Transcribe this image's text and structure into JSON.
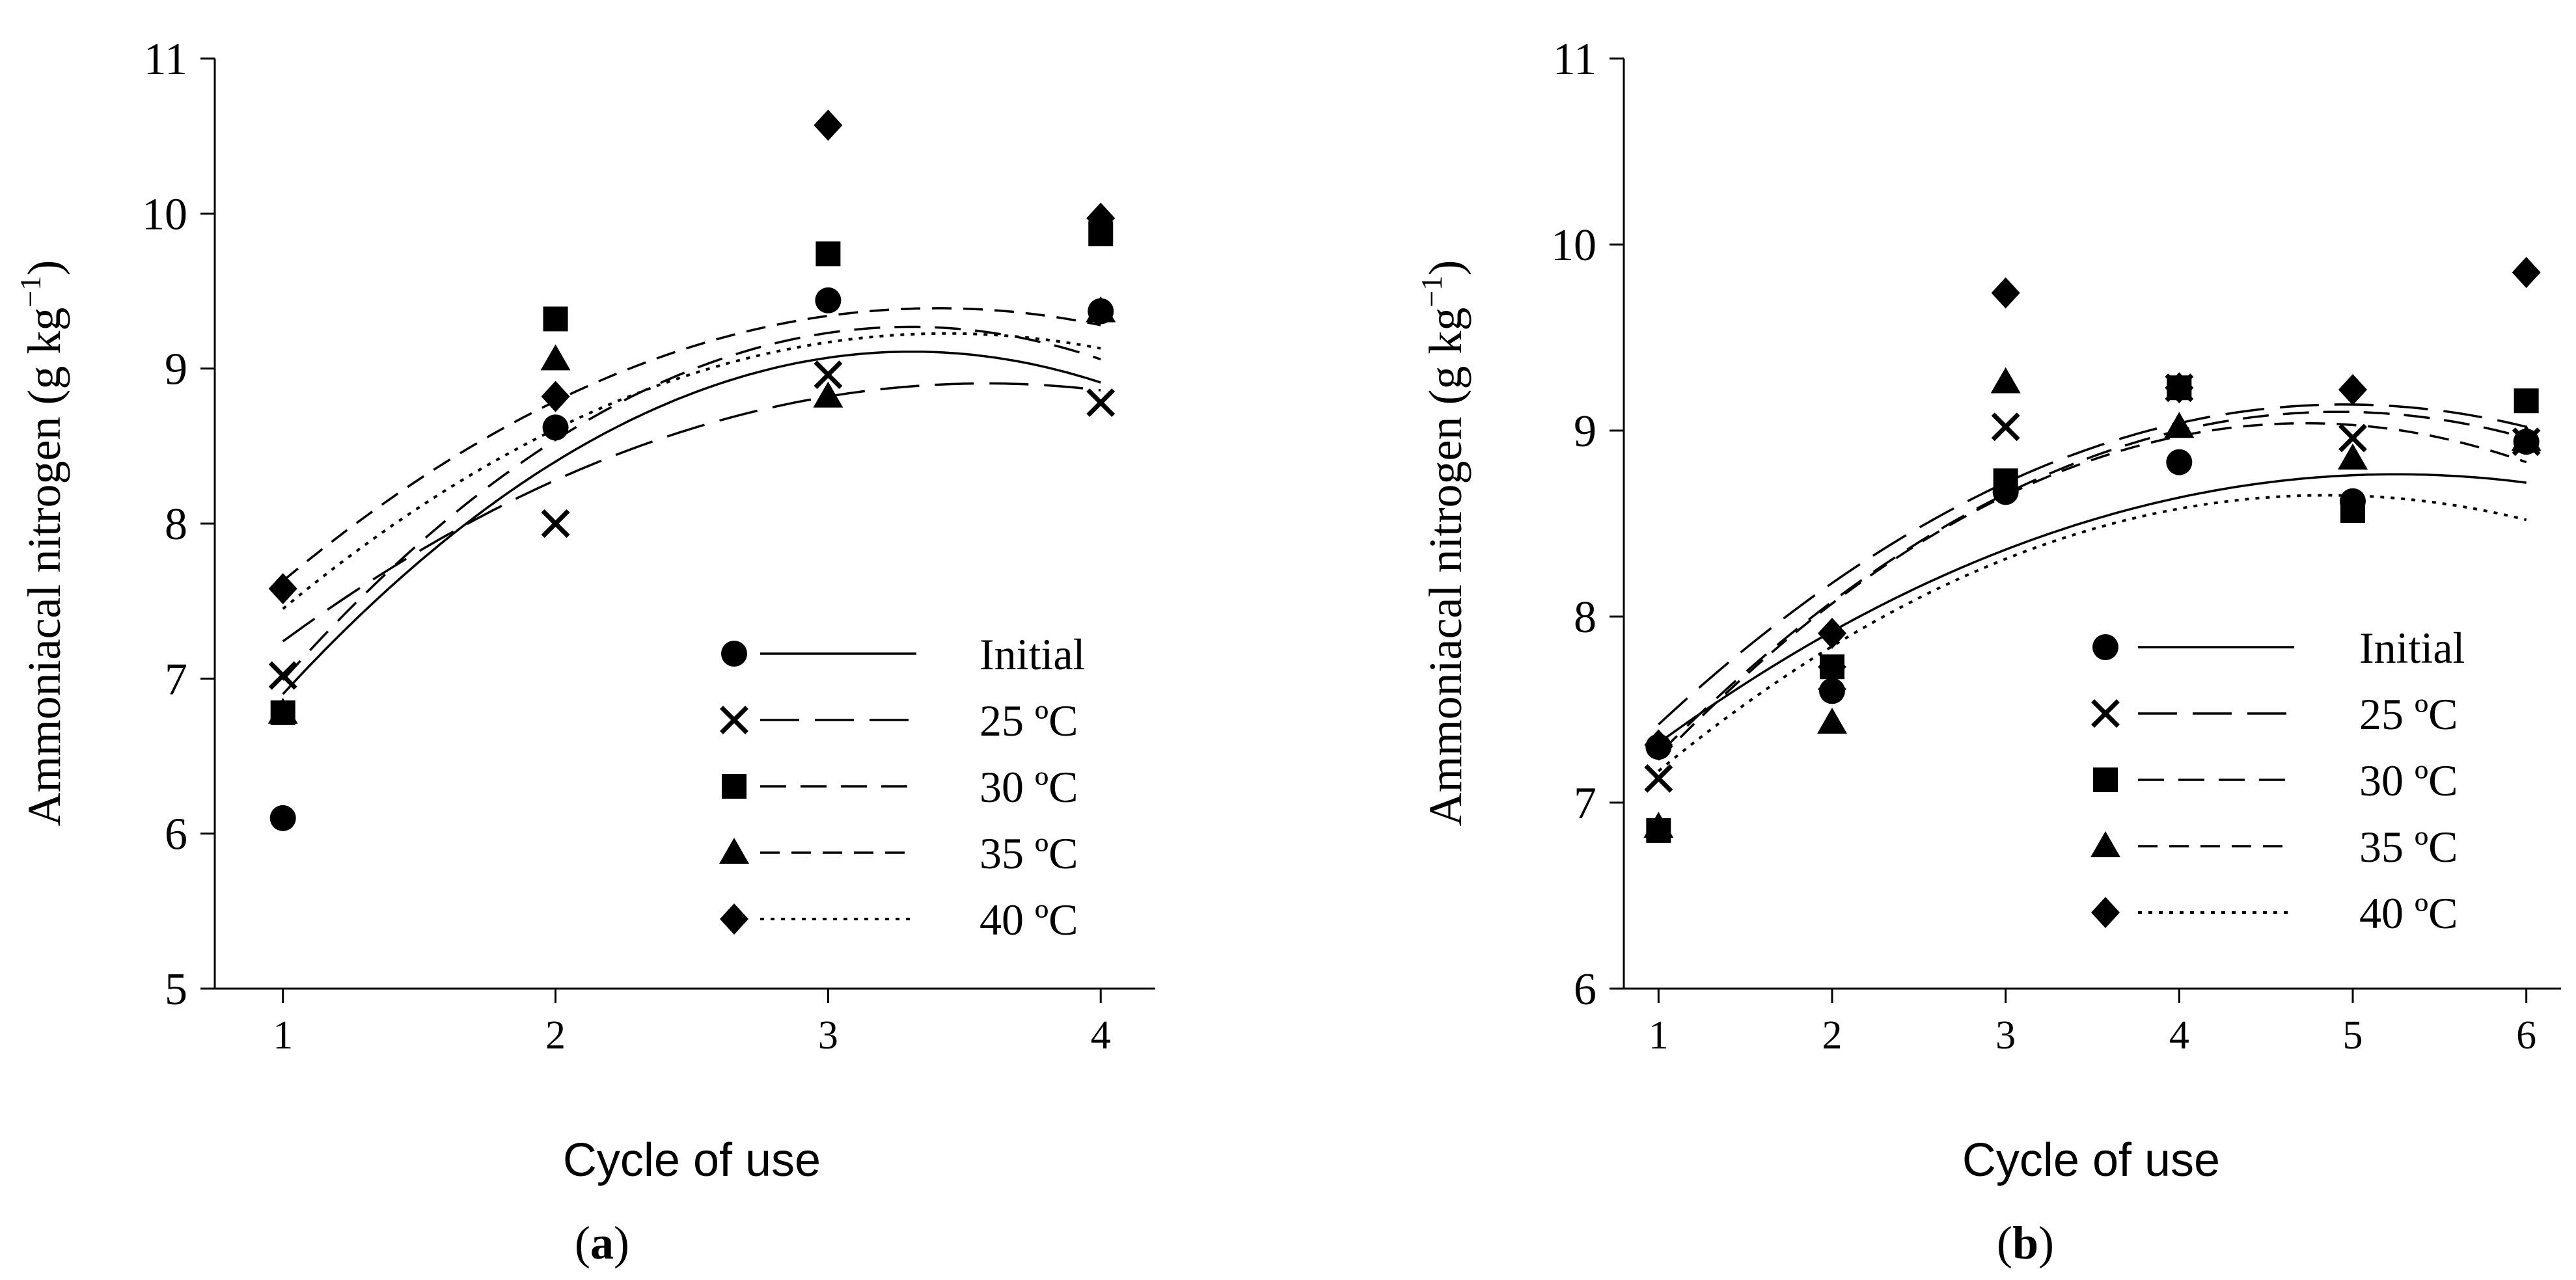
{
  "chart_data": [
    {
      "id": "a",
      "type": "scatter",
      "panel_label": "a",
      "xlabel": "Cycle of use",
      "ylabel_main": "Ammoniacal nitrogen (g kg",
      "ylabel_sup": "−1",
      "ylabel_close": ")",
      "xlim": [
        0.75,
        4.2
      ],
      "ylim": [
        5,
        11
      ],
      "xticks": [
        1,
        2,
        3,
        4
      ],
      "yticks": [
        5,
        6,
        7,
        8,
        9,
        10,
        11
      ],
      "legend_position": "bottom-right",
      "series": [
        {
          "name": "Initial",
          "marker": "circle",
          "line": "solid",
          "x": [
            1,
            2,
            3,
            4
          ],
          "y": [
            6.1,
            8.62,
            9.44,
            9.37
          ],
          "fit": [
            -0.415,
            2.745,
            4.57
          ]
        },
        {
          "name": "25 ºC",
          "marker": "cross",
          "line": "longdash",
          "x": [
            1,
            2,
            3,
            4
          ],
          "y": [
            7.02,
            8.0,
            8.96,
            8.78
          ],
          "fit": [
            -0.25,
            1.79,
            5.7
          ]
        },
        {
          "name": "30 ºC",
          "marker": "square",
          "line": "dash",
          "x": [
            1,
            2,
            3,
            4
          ],
          "y": [
            6.78,
            9.32,
            9.74,
            9.87
          ],
          "fit": [
            -0.43,
            2.84,
            4.58
          ]
        },
        {
          "name": "35 ºC",
          "marker": "triangle",
          "line": "shortdash",
          "x": [
            1,
            2,
            3,
            4
          ],
          "y": [
            6.78,
            9.06,
            8.82,
            9.37
          ],
          "fit": [
            -0.305,
            2.075,
            5.86
          ]
        },
        {
          "name": "40 ºC",
          "marker": "diamond",
          "line": "dotted",
          "x": [
            1,
            2,
            3,
            4
          ],
          "y": [
            7.58,
            8.82,
            10.57,
            9.97
          ],
          "fit": [
            -0.3,
            2.06,
            5.69
          ]
        }
      ]
    },
    {
      "id": "b",
      "type": "scatter",
      "panel_label": "b",
      "xlabel": "Cycle of use",
      "ylabel_main": "Ammoniacal nitrogen (g kg",
      "ylabel_sup": "−1",
      "ylabel_close": ")",
      "xlim": [
        0.8,
        6.2
      ],
      "ylim": [
        6,
        11
      ],
      "xticks": [
        1,
        2,
        3,
        4,
        5,
        6
      ],
      "yticks": [
        6,
        7,
        8,
        9,
        10,
        11
      ],
      "legend_position": "bottom-right",
      "series": [
        {
          "name": "Initial",
          "marker": "circle",
          "line": "solid",
          "x": [
            1,
            2,
            3,
            4,
            5,
            6
          ],
          "y": [
            7.3,
            7.6,
            8.67,
            8.83,
            8.62,
            8.94
          ],
          "fit": [
            -0.08,
            0.84,
            6.56
          ]
        },
        {
          "name": "25 ºC",
          "marker": "cross",
          "line": "longdash",
          "x": [
            1,
            2,
            3,
            4,
            5,
            6
          ],
          "y": [
            7.13,
            7.67,
            9.02,
            9.23,
            8.96,
            8.94
          ],
          "fit": [
            -0.11,
            1.09,
            6.44
          ]
        },
        {
          "name": "30 ºC",
          "marker": "square",
          "line": "dash",
          "x": [
            1,
            2,
            3,
            4,
            5,
            6
          ],
          "y": [
            6.85,
            7.73,
            8.73,
            9.23,
            8.57,
            9.16
          ],
          "fit": [
            -0.12,
            1.18,
            6.2
          ]
        },
        {
          "name": "35 ºC",
          "marker": "triangle",
          "line": "shortdash",
          "x": [
            1,
            2,
            3,
            4,
            5,
            6
          ],
          "y": [
            6.87,
            7.43,
            9.26,
            9.02,
            8.85,
            8.95
          ],
          "fit": [
            -0.13,
            1.23,
            6.13
          ]
        },
        {
          "name": "40 ºC",
          "marker": "diamond",
          "line": "dotted",
          "x": [
            1,
            2,
            3,
            4,
            5,
            6
          ],
          "y": [
            7.31,
            7.91,
            9.74,
            9.23,
            9.22,
            9.85
          ],
          "fit": [
            -0.1,
            0.97,
            6.3
          ]
        }
      ]
    }
  ]
}
